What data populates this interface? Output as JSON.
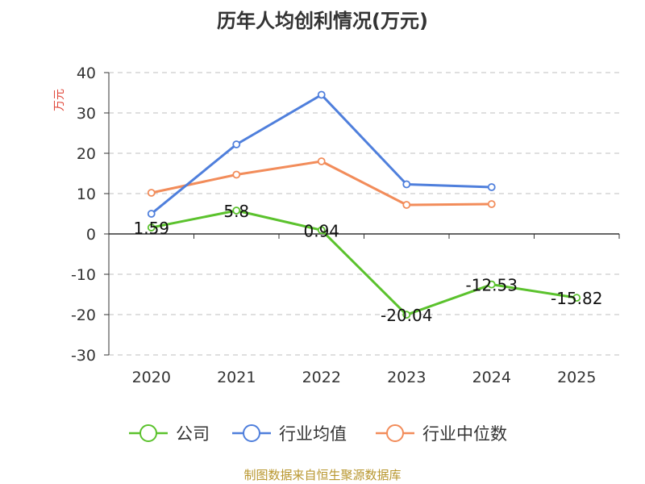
{
  "chart_data": {
    "type": "line",
    "title": "历年人均创利情况(万元)",
    "ylabel": "万元",
    "categories": [
      "2020",
      "2021",
      "2022",
      "2023",
      "2024",
      "2025"
    ],
    "ylim": [
      -30,
      40
    ],
    "yticks": [
      40,
      30,
      20,
      10,
      0,
      -10,
      -20,
      -30
    ],
    "grid": true,
    "legend_position": "bottom",
    "series": [
      {
        "name": "公司",
        "color": "#5bc22d",
        "values": [
          1.59,
          5.8,
          0.94,
          -20.04,
          -12.53,
          -15.82
        ],
        "labels": [
          "1.59",
          "5.8",
          "0.94",
          "-20.04",
          "-12.53",
          "-15.82"
        ]
      },
      {
        "name": "行业均值",
        "color": "#4f7fdc",
        "values": [
          5.0,
          22.2,
          34.5,
          12.3,
          11.6,
          null
        ]
      },
      {
        "name": "行业中位数",
        "color": "#f28c5a",
        "values": [
          10.2,
          14.7,
          18.0,
          7.2,
          7.4,
          null
        ]
      }
    ]
  },
  "footer": {
    "source": "制图数据来自恒生聚源数据库"
  }
}
